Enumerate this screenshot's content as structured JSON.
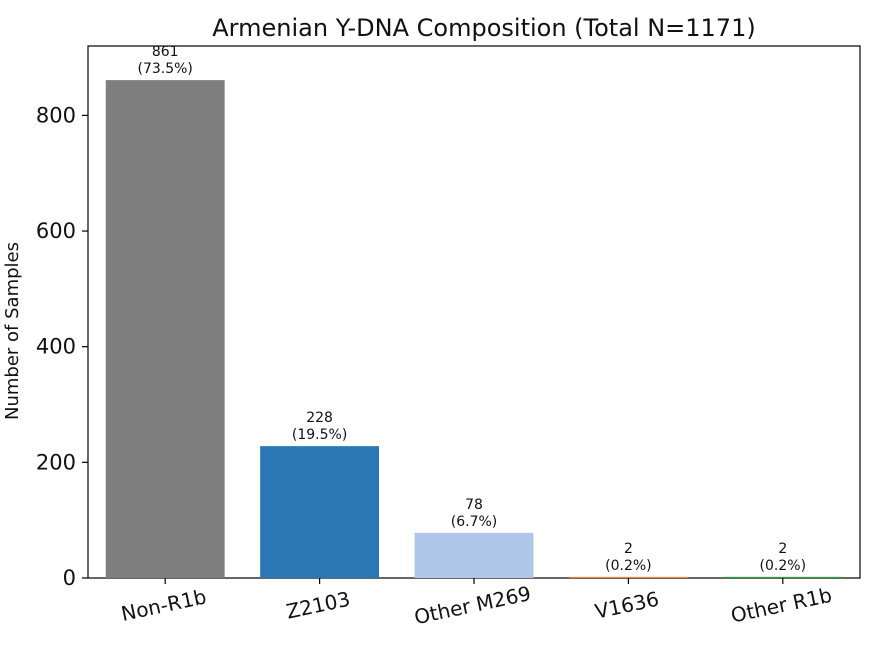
{
  "chart_data": {
    "type": "bar",
    "title": "Armenian Y-DNA Composition (Total N=1171)",
    "xlabel": "",
    "ylabel": "Number of Samples",
    "categories": [
      "Non-R1b",
      "Z2103",
      "Other M269",
      "V1636",
      "Other R1b"
    ],
    "values": [
      861,
      228,
      78,
      2,
      2
    ],
    "percent_labels": [
      "(73.5%)",
      "(19.5%)",
      "(6.7%)",
      "(0.2%)",
      "(0.2%)"
    ],
    "colors": [
      "#7f7f7f",
      "#2a77b3",
      "#aec7e8",
      "#e8893a",
      "#2b9e3a"
    ],
    "ylim": [
      0,
      920
    ],
    "yticks": [
      0,
      200,
      400,
      600,
      800
    ],
    "grid": false,
    "legend": "none"
  }
}
